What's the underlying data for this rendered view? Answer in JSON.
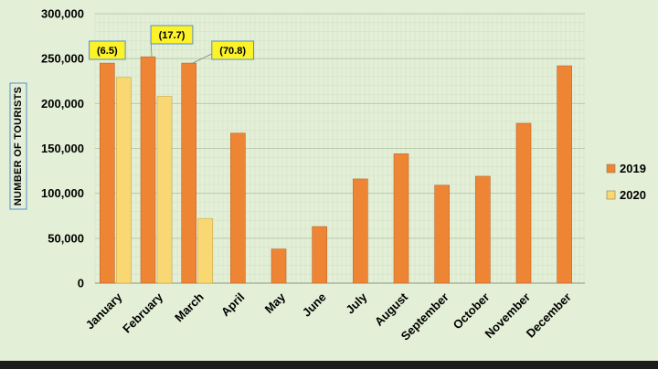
{
  "chart_data": {
    "type": "bar",
    "title": "",
    "xlabel": "",
    "ylabel": "NUMBER OF TOURISTS",
    "ylim": [
      0,
      300000
    ],
    "yticks": [
      0,
      50000,
      100000,
      150000,
      200000,
      250000,
      300000
    ],
    "ytick_labels": [
      "0",
      "50,000",
      "100,000",
      "150,000",
      "200,000",
      "250,000",
      "300,000"
    ],
    "categories": [
      "January",
      "February",
      "March",
      "April",
      "May",
      "June",
      "July",
      "August",
      "September",
      "October",
      "November",
      "December"
    ],
    "series": [
      {
        "name": "2019",
        "color": "#ee8535",
        "values": [
          245000,
          252000,
          245000,
          167000,
          38000,
          63000,
          116000,
          144000,
          109000,
          119000,
          178000,
          242000
        ]
      },
      {
        "name": "2020",
        "color": "#f9d773",
        "values": [
          229000,
          208000,
          72000,
          null,
          null,
          null,
          null,
          null,
          null,
          null,
          null,
          null
        ]
      }
    ],
    "annotations": [
      {
        "category": "January",
        "text": "(6.5)"
      },
      {
        "category": "February",
        "text": "(17.7)"
      },
      {
        "category": "March",
        "text": "(70.8)"
      }
    ],
    "legend_position": "right",
    "grid": true
  }
}
